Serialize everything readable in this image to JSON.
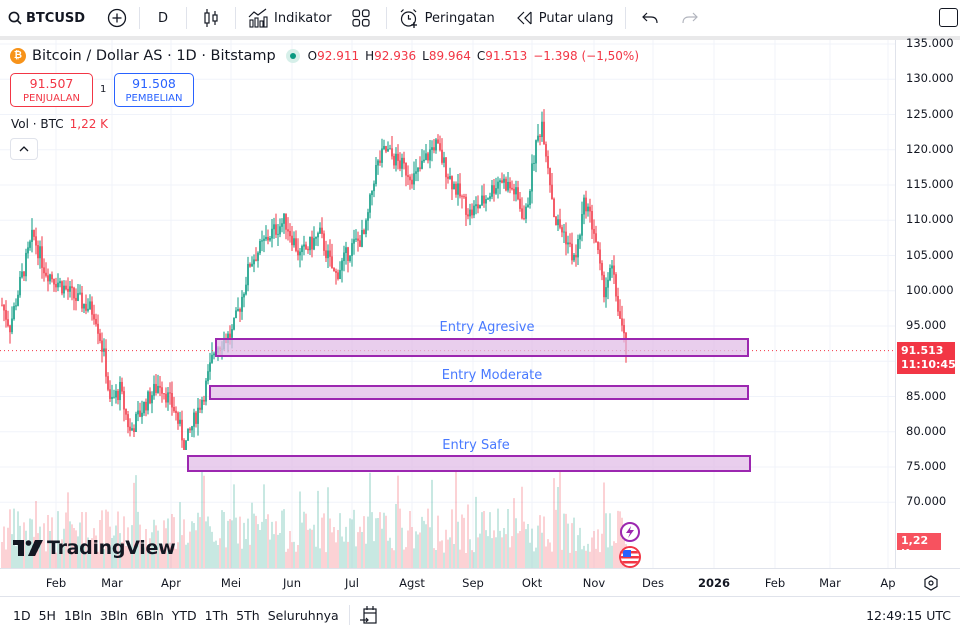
{
  "toolbar": {
    "symbol": "BTCUSD",
    "interval": "D",
    "indicators_label": "Indikator",
    "alerts_label": "Peringatan",
    "replay_label": "Putar ulang"
  },
  "legend": {
    "title": "Bitcoin / Dollar AS · 1D · Bitstamp",
    "btc_glyph": "₿",
    "open_key": "O",
    "open": "92.911",
    "high_key": "H",
    "high": "92.936",
    "low_key": "L",
    "low": "89.964",
    "close_key": "C",
    "close": "91.513",
    "change": "−1.398 (−1,50%)"
  },
  "trade": {
    "sell_price": "91.507",
    "sell_label": "PENJUALAN",
    "spread": "1",
    "buy_price": "91.508",
    "buy_label": "PEMBELIAN"
  },
  "volume_legend": {
    "label": "Vol · BTC",
    "value": "1,22 K"
  },
  "price_axis": {
    "ticks": [
      "135.000",
      "130.000",
      "125.000",
      "120.000",
      "115.000",
      "110.000",
      "105.000",
      "100.000",
      "95.000",
      "85.000",
      "80.000",
      "75.000",
      "70.000"
    ],
    "current_price": "91.513",
    "countdown": "11:10:45",
    "volume_badge": "1,22 K"
  },
  "time_axis": {
    "ticks": [
      "Feb",
      "Mar",
      "Apr",
      "Mei",
      "Jun",
      "Jul",
      "Agst",
      "Sep",
      "Okt",
      "Nov",
      "Des",
      "2026",
      "Feb",
      "Mar",
      "Ap"
    ]
  },
  "zones": [
    {
      "label": "Entry Agresive",
      "top_price": 93200,
      "bottom_price": 90800
    },
    {
      "label": "Entry Moderate",
      "top_price": 86600,
      "bottom_price": 84600
    },
    {
      "label": "Entry Safe",
      "top_price": 76700,
      "bottom_price": 74500
    }
  ],
  "branding": {
    "logo_text": "TradingView"
  },
  "bottom_bar": {
    "ranges": [
      "1D",
      "5H",
      "1Bln",
      "3Bln",
      "6Bln",
      "YTD",
      "1Th",
      "5Th",
      "Seluruhnya"
    ],
    "clock": "12:49:15 UTC"
  },
  "colors": {
    "up": "#089981",
    "down": "#f23645",
    "zone_border": "#9c27b0",
    "zone_fill": "#e1bee7",
    "zone_label": "#2962ff"
  },
  "chart_data": {
    "type": "candlestick",
    "title": "Bitcoin / Dollar AS · 1D · Bitstamp",
    "ylim": [
      66000,
      136000
    ],
    "y_ticks": [
      70000,
      75000,
      80000,
      85000,
      90000,
      95000,
      100000,
      105000,
      110000,
      115000,
      120000,
      125000,
      130000,
      135000
    ],
    "x_ticks": [
      "Feb",
      "Mar",
      "Apr",
      "Mei",
      "Jun",
      "Jul",
      "Agst",
      "Sep",
      "Okt",
      "Nov",
      "Des",
      "2026",
      "Feb",
      "Mar",
      "Ap"
    ],
    "approx_close_path": [
      {
        "month": "Jan",
        "price": 98000
      },
      {
        "month": "Jan-late",
        "price": 104000
      },
      {
        "month": "Feb",
        "price": 97000
      },
      {
        "month": "Mar",
        "price": 84000
      },
      {
        "month": "Apr-early",
        "price": 78000
      },
      {
        "month": "Apr-late",
        "price": 94000
      },
      {
        "month": "Mei",
        "price": 104000
      },
      {
        "month": "Mei-late",
        "price": 110000
      },
      {
        "month": "Jun",
        "price": 105000
      },
      {
        "month": "Jul",
        "price": 118000
      },
      {
        "month": "Agst",
        "price": 117000
      },
      {
        "month": "Sep",
        "price": 111000
      },
      {
        "month": "Okt",
        "price": 124000
      },
      {
        "month": "Okt-late",
        "price": 110000
      },
      {
        "month": "Nov",
        "price": 102000
      },
      {
        "month": "Nov-mid",
        "price": 91513
      }
    ],
    "last": {
      "open": 92911,
      "high": 92936,
      "low": 89964,
      "close": 91513
    },
    "volume_last": "1,22 K",
    "annotations": [
      "Entry Agresive",
      "Entry Moderate",
      "Entry Safe"
    ]
  }
}
